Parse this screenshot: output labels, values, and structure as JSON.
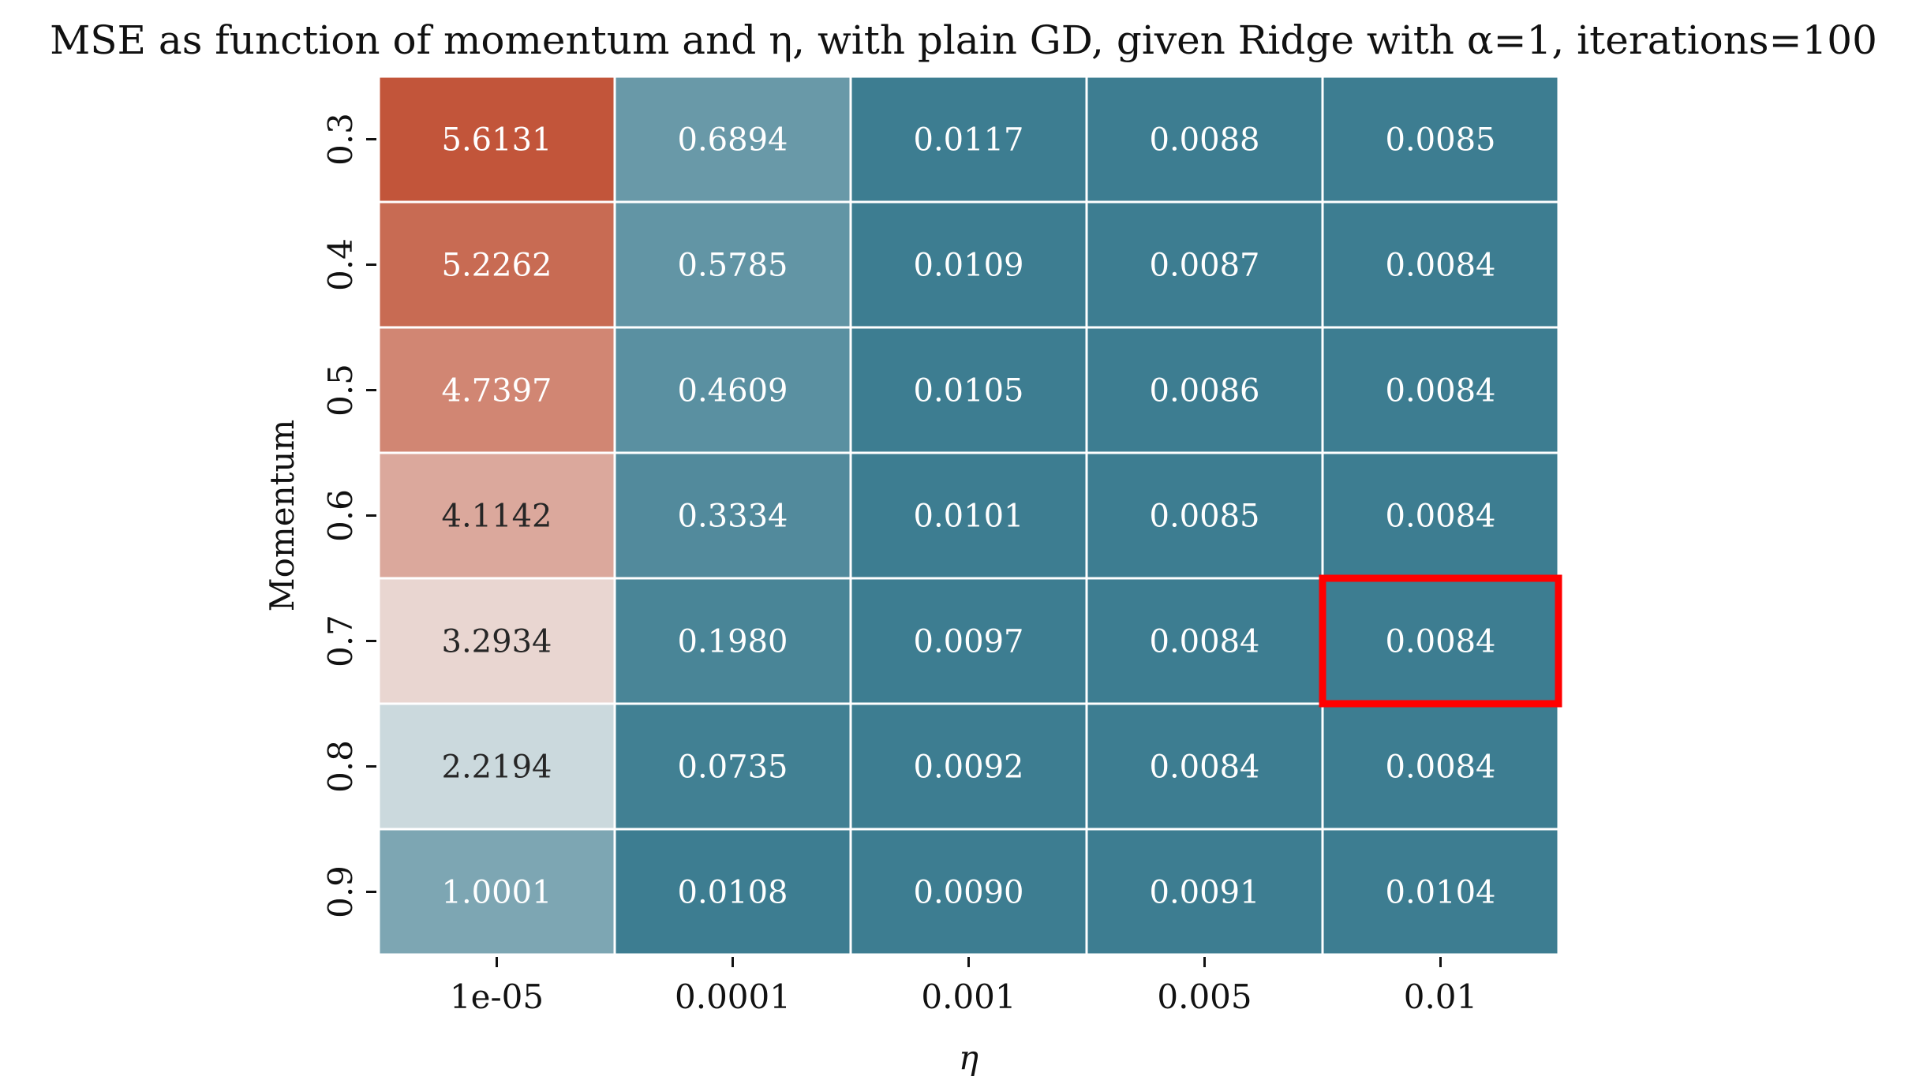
{
  "chart_data": {
    "type": "heatmap",
    "title": "MSE as function of momentum and η, with plain GD, given Ridge with α=1, iterations=100",
    "xlabel": "η",
    "ylabel": "Momentum",
    "x_categories": [
      "1e-05",
      "0.0001",
      "0.001",
      "0.005",
      "0.01"
    ],
    "y_categories": [
      "0.3",
      "0.4",
      "0.5",
      "0.6",
      "0.7",
      "0.8",
      "0.9"
    ],
    "values": [
      [
        5.6131,
        0.6894,
        0.0117,
        0.0088,
        0.0085
      ],
      [
        5.2262,
        0.5785,
        0.0109,
        0.0087,
        0.0084
      ],
      [
        4.7397,
        0.4609,
        0.0105,
        0.0086,
        0.0084
      ],
      [
        4.1142,
        0.3334,
        0.0101,
        0.0085,
        0.0084
      ],
      [
        3.2934,
        0.198,
        0.0097,
        0.0084,
        0.0084
      ],
      [
        2.2194,
        0.0735,
        0.0092,
        0.0084,
        0.0084
      ],
      [
        1.0001,
        0.0108,
        0.009,
        0.0091,
        0.0104
      ]
    ],
    "value_labels": [
      [
        "5.6131",
        "0.6894",
        "0.0117",
        "0.0088",
        "0.0085"
      ],
      [
        "5.2262",
        "0.5785",
        "0.0109",
        "0.0087",
        "0.0084"
      ],
      [
        "4.7397",
        "0.4609",
        "0.0105",
        "0.0086",
        "0.0084"
      ],
      [
        "4.1142",
        "0.3334",
        "0.0101",
        "0.0085",
        "0.0084"
      ],
      [
        "3.2934",
        "0.1980",
        "0.0097",
        "0.0084",
        "0.0084"
      ],
      [
        "2.2194",
        "0.0735",
        "0.0092",
        "0.0084",
        "0.0084"
      ],
      [
        "1.0001",
        "0.0108",
        "0.0090",
        "0.0091",
        "0.0104"
      ]
    ],
    "color_low": "#3d7d91",
    "color_mid": "#f1f1f1",
    "color_high": "#c2553a",
    "vmin": 0.0084,
    "vmax": 5.6131,
    "highlight": {
      "row": 4,
      "col": 4,
      "color": "#ff0000"
    },
    "colorbar": false,
    "grid_color": "#ffffff"
  }
}
